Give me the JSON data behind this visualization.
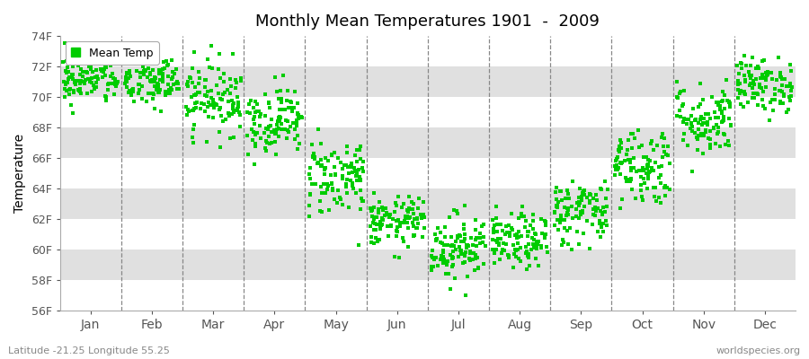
{
  "title": "Monthly Mean Temperatures 1901  -  2009",
  "ylabel": "Temperature",
  "ylim": [
    56,
    74
  ],
  "yticks": [
    56,
    58,
    60,
    62,
    64,
    66,
    68,
    70,
    72,
    74
  ],
  "ytick_labels": [
    "56F",
    "58F",
    "60F",
    "62F",
    "64F",
    "66F",
    "68F",
    "70F",
    "72F",
    "74F"
  ],
  "months": [
    "Jan",
    "Feb",
    "Mar",
    "Apr",
    "May",
    "Jun",
    "Jul",
    "Aug",
    "Sep",
    "Oct",
    "Nov",
    "Dec"
  ],
  "dot_color": "#00CC00",
  "bg_color": "#ffffff",
  "band_color": "#e0e0e0",
  "subtitle_left": "Latitude -21.25 Longitude 55.25",
  "subtitle_right": "worldspecies.org",
  "legend_label": "Mean Temp",
  "monthly_means": [
    71.2,
    71.0,
    70.0,
    68.5,
    64.8,
    61.8,
    60.2,
    60.5,
    62.5,
    65.5,
    68.5,
    70.8
  ],
  "monthly_stds": [
    0.85,
    0.9,
    1.2,
    1.1,
    1.3,
    0.8,
    1.1,
    0.9,
    1.1,
    1.3,
    1.2,
    0.9
  ],
  "n_years": 109,
  "seed": 42
}
